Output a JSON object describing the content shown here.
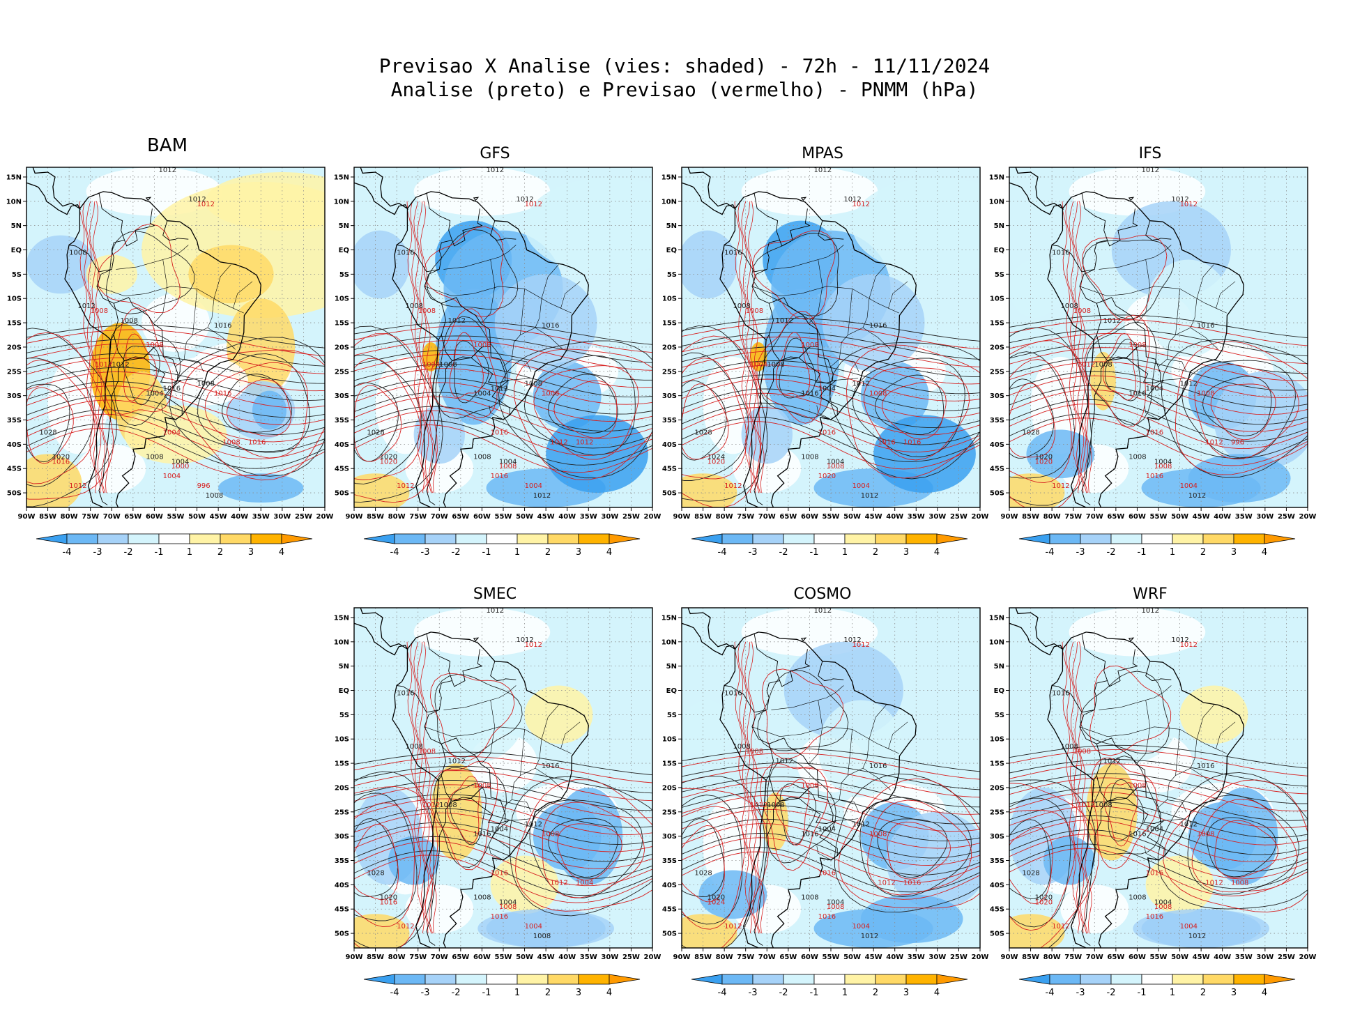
{
  "header": {
    "title_line1": "Previsao X Analise (vies: shaded) - 72h - 11/11/2024",
    "title_line2": "Analise (preto) e Previsao (vermelho) - PNMM (hPa)"
  },
  "axes": {
    "lat_labels": [
      "15N",
      "10N",
      "5N",
      "EQ",
      "5S",
      "10S",
      "15S",
      "20S",
      "25S",
      "30S",
      "35S",
      "40S",
      "45S",
      "50S"
    ],
    "lon_labels": [
      "90W",
      "85W",
      "80W",
      "75W",
      "70W",
      "65W",
      "60W",
      "55W",
      "50W",
      "45W",
      "40W",
      "35W",
      "30W",
      "25W",
      "20W"
    ]
  },
  "colorbar": {
    "labels": [
      "-4",
      "-3",
      "-2",
      "-1",
      "1",
      "2",
      "3",
      "4"
    ],
    "colors": [
      "#3aa0f0",
      "#6cb8f5",
      "#a6d2f8",
      "#d4f4fc",
      "#ffffff",
      "#fff3a6",
      "#ffd966",
      "#ffb300",
      "#ff9a00"
    ]
  },
  "colors": {
    "analysis_line": "#222222",
    "forecast_line": "#d62020",
    "coast": "#000000",
    "grid": "#8c8c8c"
  },
  "panels": [
    {
      "id": "bam",
      "name": "BAM",
      "bias": "warm",
      "labels_a": [
        "1012",
        "1012",
        "1008",
        "1012",
        "1008",
        "1016",
        "1016",
        "1012",
        "1004",
        "1008",
        "1028",
        "1020",
        "1008",
        "1004",
        "1008"
      ],
      "labels_f": [
        "1012",
        "1008",
        "1008",
        "1012",
        "1004",
        "1016",
        "1008",
        "1004",
        "1000",
        "996",
        "1012",
        "1016",
        "1016"
      ]
    },
    {
      "id": "gfs",
      "name": "GFS",
      "bias": "cold",
      "labels_a": [
        "1012",
        "1012",
        "1016",
        "1008",
        "1012",
        "1016",
        "1012",
        "1008",
        "1004",
        "1008",
        "1028",
        "1020",
        "1008",
        "1004",
        "1012"
      ],
      "labels_f": [
        "1012",
        "1008",
        "1008",
        "1004",
        "1016",
        "1008",
        "1012",
        "1016",
        "1008",
        "1004",
        "1012",
        "1020",
        "1012"
      ]
    },
    {
      "id": "mpas",
      "name": "MPAS",
      "bias": "cold",
      "labels_a": [
        "1012",
        "1012",
        "1016",
        "1008",
        "1012",
        "1016",
        "1004",
        "1008",
        "1016",
        "1012",
        "1028",
        "1024",
        "1008",
        "1004",
        "1012"
      ],
      "labels_f": [
        "1012",
        "1008",
        "1008",
        "1004",
        "1016",
        "1008",
        "1016",
        "1020",
        "1008",
        "1004",
        "1012",
        "1020",
        "1016"
      ]
    },
    {
      "id": "ifs",
      "name": "IFS",
      "bias": "cool",
      "labels_a": [
        "1012",
        "1012",
        "1016",
        "1008",
        "1012",
        "1016",
        "1004",
        "1008",
        "1016",
        "1012",
        "1028",
        "1020",
        "1008",
        "1004",
        "1012"
      ],
      "labels_f": [
        "1012",
        "1008",
        "1008",
        "1012",
        "1016",
        "1008",
        "1012",
        "1016",
        "1008",
        "1004",
        "1012",
        "1020",
        "996"
      ]
    },
    {
      "id": "smec",
      "name": "SMEC",
      "bias": "mixed",
      "labels_a": [
        "1012",
        "1012",
        "1016",
        "1008",
        "1012",
        "1016",
        "1004",
        "1008",
        "1016",
        "1012",
        "1028",
        "1020",
        "1008",
        "1004",
        "1008"
      ],
      "labels_f": [
        "1012",
        "1008",
        "1008",
        "1012",
        "1016",
        "1008",
        "1012",
        "1016",
        "1008",
        "1004",
        "1012",
        "1016",
        "1004"
      ]
    },
    {
      "id": "cosmo",
      "name": "COSMO",
      "bias": "cool",
      "labels_a": [
        "1012",
        "1012",
        "1016",
        "1008",
        "1012",
        "1016",
        "1004",
        "1008",
        "1016",
        "1012",
        "1028",
        "1020",
        "1008",
        "1004",
        "1012"
      ],
      "labels_f": [
        "1012",
        "1008",
        "1008",
        "1012",
        "1016",
        "1008",
        "1012",
        "1016",
        "1008",
        "1004",
        "1012",
        "1024",
        "1016"
      ]
    },
    {
      "id": "wrf",
      "name": "WRF",
      "bias": "mixed",
      "labels_a": [
        "1012",
        "1012",
        "1016",
        "1008",
        "1012",
        "1016",
        "1004",
        "1008",
        "1016",
        "1012",
        "1028",
        "1020",
        "1008",
        "1004",
        "1012"
      ],
      "labels_f": [
        "1012",
        "1008",
        "1008",
        "1012",
        "1016",
        "1008",
        "1012",
        "1016",
        "1008",
        "1004",
        "1012",
        "1020",
        "1008"
      ]
    }
  ]
}
